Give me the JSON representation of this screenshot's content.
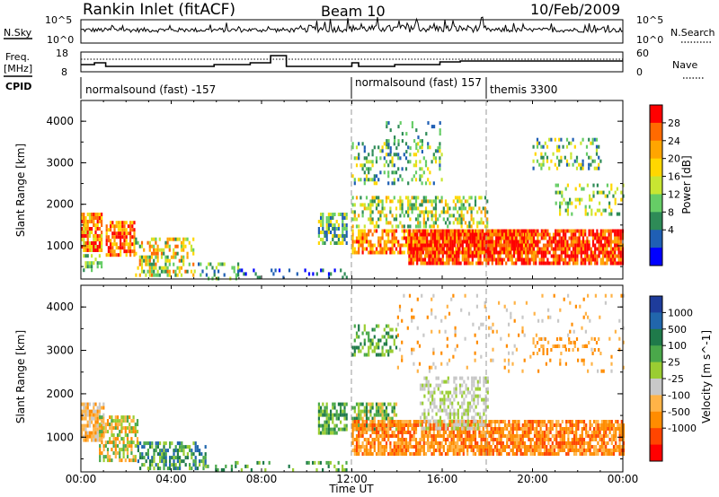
{
  "header": {
    "title": "Rankin Inlet (fitACF)",
    "beam": "Beam 10",
    "date": "10/Feb/2009"
  },
  "nsky_panel": {
    "left_label": "N.Sky",
    "left_ticks": [
      "10^5",
      "10^0"
    ],
    "right_label": "N.Search",
    "right_ticks": [
      "10^5",
      "10^0"
    ]
  },
  "freq_panel": {
    "left_label_1": "Freq.",
    "left_label_2": "[MHz]",
    "left_ticks": [
      "18",
      "8"
    ],
    "right_label": "Nave",
    "right_ticks": [
      "60",
      "0"
    ]
  },
  "cpid": {
    "label": "CPID",
    "segments": [
      "normalsound (fast) -157",
      "normalsound (fast) 157",
      "themis 3300"
    ]
  },
  "chart_data": [
    {
      "type": "heatmap",
      "name": "power",
      "ylabel": "Slant Range [km]",
      "xlabel": "Time UT",
      "y_ticks": [
        "1000",
        "2000",
        "3000",
        "4000"
      ],
      "ylim": [
        200,
        4500
      ],
      "xlim_hours": [
        0,
        24
      ],
      "colorbar_label": "Power [dB]",
      "colorbar_ticks": [
        "4",
        "8",
        "12",
        "16",
        "20",
        "24",
        "28"
      ],
      "colors": [
        "#0000ff",
        "#1f5fb4",
        "#2e8b57",
        "#66cd66",
        "#c8e632",
        "#ffd700",
        "#ffa500",
        "#ff6a00",
        "#ff0000"
      ]
    },
    {
      "type": "heatmap",
      "name": "velocity",
      "ylabel": "Slant Range [km]",
      "xlabel": "Time UT",
      "y_ticks": [
        "1000",
        "2000",
        "3000",
        "4000"
      ],
      "ylim": [
        200,
        4500
      ],
      "xlim_hours": [
        0,
        24
      ],
      "colorbar_label": "Velocity [m s^-1]",
      "colorbar_ticks": [
        "1000",
        "500",
        "100",
        "25",
        "-25",
        "-100",
        "-500",
        "-1000"
      ],
      "colors": [
        "#1e3c9b",
        "#2166ac",
        "#1f7a4a",
        "#4aa84a",
        "#9acd32",
        "#c8c8c8",
        "#ffb347",
        "#ff8c00",
        "#ff4500",
        "#ff0000"
      ]
    }
  ],
  "x_axis": {
    "tick_labels": [
      "00:00",
      "04:00",
      "08:00",
      "12:00",
      "16:00",
      "20:00",
      "00:00"
    ],
    "label": "Time UT"
  }
}
